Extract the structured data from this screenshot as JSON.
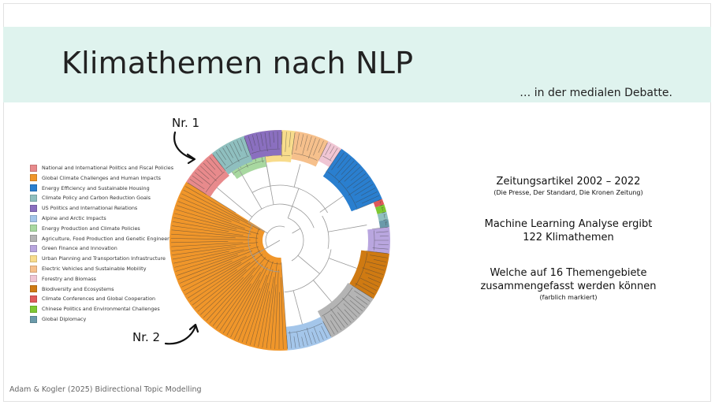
{
  "header": {
    "title": "Klimathemen nach NLP",
    "subtitle": "… in der medialen Debatte."
  },
  "legend": [
    {
      "label": "National and International Politics and Fiscal Policies",
      "color": "#e88a8c"
    },
    {
      "label": "Global Climate Challenges and Human Impacts",
      "color": "#f0962a"
    },
    {
      "label": "Energy Efficiency and Sustainable Housing",
      "color": "#2a7fcf"
    },
    {
      "label": "Climate Policy and Carbon Reduction Goals",
      "color": "#8fbfbf"
    },
    {
      "label": "US Politics and International Relations",
      "color": "#8a6fbf"
    },
    {
      "label": "Alpine and Arctic Impacts",
      "color": "#a4c6ea"
    },
    {
      "label": "Energy Production and Climate Policies",
      "color": "#a8d8a0"
    },
    {
      "label": "Agriculture, Food Production and Genetic Engineering",
      "color": "#b4b4b4"
    },
    {
      "label": "Green Finance and Innovation",
      "color": "#b9a6df"
    },
    {
      "label": "Urban Planning and Transportation Infrastructure",
      "color": "#f8dc8c"
    },
    {
      "label": "Electric Vehicles and Sustainable Mobility",
      "color": "#f6c08c"
    },
    {
      "label": "Forestry and Biomass",
      "color": "#f0c6d4"
    },
    {
      "label": "Biodiversity and Ecosystems",
      "color": "#cf7a12"
    },
    {
      "label": "Climate Conferences and Global Cooperation",
      "color": "#e05a5a"
    },
    {
      "label": "Chinese Politics and Environmental Challenges",
      "color": "#7ec832"
    },
    {
      "label": "Global Diplomacy",
      "color": "#6a9aaa"
    }
  ],
  "annotations": {
    "nr1": "Nr. 1",
    "nr2": "Nr. 2"
  },
  "info": {
    "line1": "Zeitungsartikel 2002 – 2022",
    "line1_sub": "(Die Presse, Der Standard, Die Kronen Zeitung)",
    "line2a": "Machine Learning Analyse ergibt",
    "line2b": "122 Klimathemen",
    "line3a": "Welche auf 16 Themengebiete",
    "line3b": "zusammengefasst werden können",
    "line3_sub": "(farblich markiert)"
  },
  "footer": "Adam & Kogler (2025) Bidirectional Topic Modelling"
}
